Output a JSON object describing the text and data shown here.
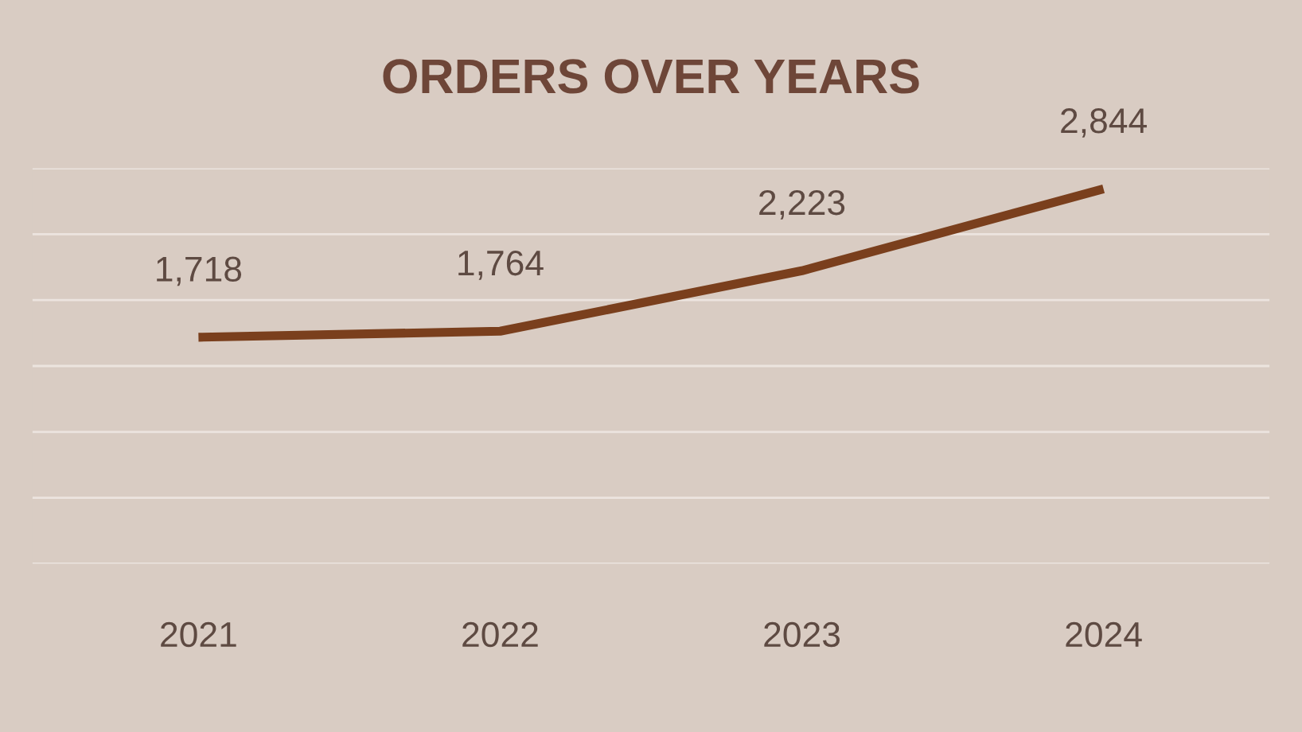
{
  "chart_data": {
    "type": "line",
    "title": "ORDERS OVER YEARS",
    "categories": [
      "2021",
      "2022",
      "2023",
      "2024"
    ],
    "series": [
      {
        "color": "#7a3f1d",
        "values": [
          1718,
          1764,
          2223,
          2844
        ],
        "value_labels": [
          "1,718",
          "1,764",
          "2,223",
          "2,844"
        ]
      }
    ],
    "ylim": [
      0,
      3000
    ],
    "yticks": [
      {
        "value": 0,
        "label": null
      },
      {
        "value": 500,
        "label": null
      },
      {
        "value": 1000,
        "label": null
      },
      {
        "value": 1500,
        "label": null
      },
      {
        "value": 2000,
        "label": null
      },
      {
        "value": 2500,
        "label": null
      },
      {
        "value": 3000,
        "label": null
      }
    ],
    "grid": "y",
    "tick_labels": "x",
    "marker": "none",
    "line_style": "solid"
  }
}
